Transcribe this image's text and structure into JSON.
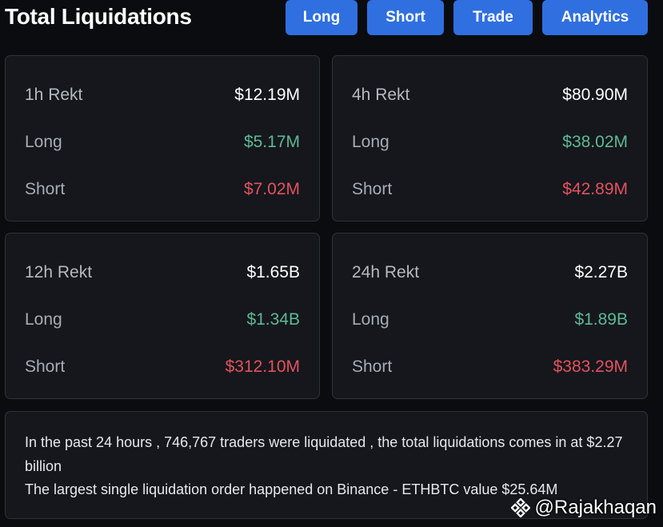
{
  "header": {
    "title": "Total Liquidations",
    "tabs": [
      {
        "label": "Long"
      },
      {
        "label": "Short"
      },
      {
        "label": "Trade"
      },
      {
        "label": "Analytics"
      }
    ]
  },
  "cards": [
    {
      "period": "1h Rekt",
      "total": "$12.19M",
      "long_label": "Long",
      "long": "$5.17M",
      "short_label": "Short",
      "short": "$7.02M"
    },
    {
      "period": "4h Rekt",
      "total": "$80.90M",
      "long_label": "Long",
      "long": "$38.02M",
      "short_label": "Short",
      "short": "$42.89M"
    },
    {
      "period": "12h Rekt",
      "total": "$1.65B",
      "long_label": "Long",
      "long": "$1.34B",
      "short_label": "Short",
      "short": "$312.10M"
    },
    {
      "period": "24h Rekt",
      "total": "$2.27B",
      "long_label": "Long",
      "long": "$1.89B",
      "short_label": "Short",
      "short": "$383.29M"
    }
  ],
  "summary": {
    "line1": "In the past 24 hours , 746,767 traders were liquidated , the total liquidations comes in at $2.27 billion",
    "line2": "The largest single liquidation order happened on Binance - ETHBTC value $25.64M"
  },
  "watermark": {
    "handle": "@Rajakhaqan",
    "icon": "binance-logo-icon"
  },
  "colors": {
    "tab_blue": "#2f6fe0",
    "long_green": "#5fb894",
    "short_red": "#e2525f",
    "card_bg": "#15171c"
  }
}
